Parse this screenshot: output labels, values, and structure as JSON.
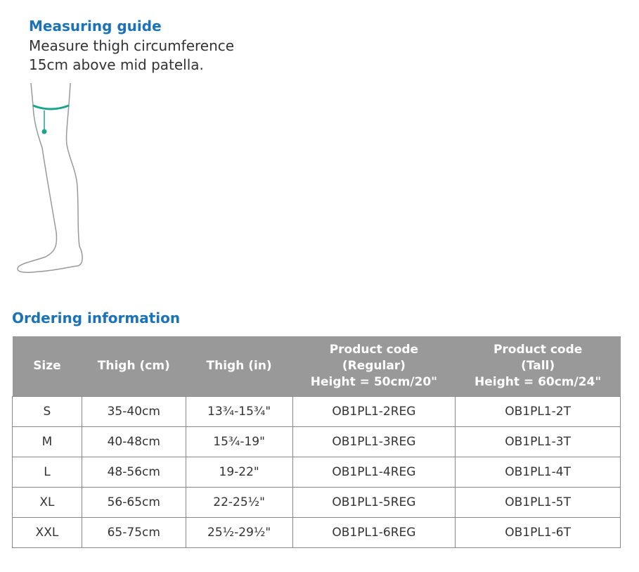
{
  "guide": {
    "title": "Measuring guide",
    "text_line1": "Measure thigh circumference",
    "text_line2": "15cm above mid patella.",
    "accent_color": "#1aa58a"
  },
  "ordering": {
    "title": "Ordering information",
    "headers": [
      "Size",
      "Thigh (cm)",
      "Thigh (in)",
      [
        "Product code",
        "(Regular)",
        "Height = 50cm/20\""
      ],
      [
        "Product code",
        "(Tall)",
        "Height = 60cm/24\""
      ]
    ],
    "rows": [
      [
        "S",
        "35-40cm",
        "13¾-15¾\"",
        "OB1PL1-2REG",
        "OB1PL1-2T"
      ],
      [
        "M",
        "40-48cm",
        "15¾-19\"",
        "OB1PL1-3REG",
        "OB1PL1-3T"
      ],
      [
        "L",
        "48-56cm",
        "19-22\"",
        "OB1PL1-4REG",
        "OB1PL1-4T"
      ],
      [
        "XL",
        "56-65cm",
        "22-25½\"",
        "OB1PL1-5REG",
        "OB1PL1-5T"
      ],
      [
        "XXL",
        "65-75cm",
        "25½-29½\"",
        "OB1PL1-6REG",
        "OB1PL1-6T"
      ]
    ]
  }
}
